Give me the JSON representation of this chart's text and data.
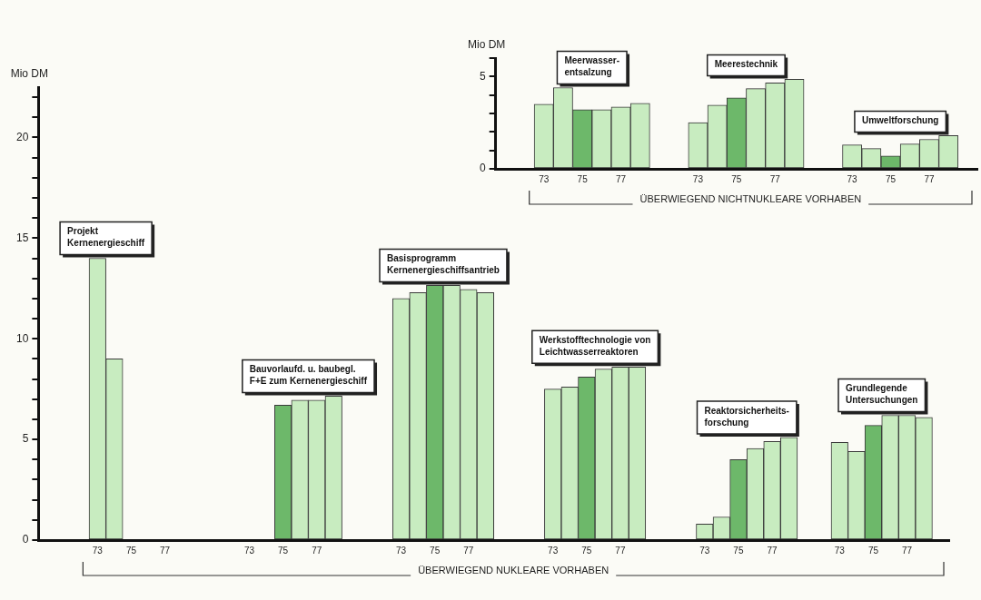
{
  "chart_data": [
    {
      "type": "bar",
      "ylabel": "Mio DM",
      "categories": [
        null,
        null,
        null,
        "73",
        null,
        "75",
        null,
        "77",
        null,
        null,
        null,
        null,
        "73",
        null,
        "75",
        null,
        "77",
        null,
        null,
        null,
        null,
        "73",
        null,
        "75",
        null,
        "77",
        null,
        null,
        null,
        null,
        "73",
        null,
        "75",
        null,
        "77",
        null,
        null,
        null,
        null,
        "73",
        null,
        "75",
        null,
        "77",
        null,
        null,
        null,
        "73",
        null,
        "75",
        null,
        "77",
        null,
        null
      ],
      "series": [
        {
          "name": "Projekt\nKernenergieschiff",
          "color": "#c8ecc0",
          "values": [
            null,
            null,
            null,
            14.0,
            9.0,
            null,
            null,
            null,
            null,
            null,
            null,
            null,
            null,
            null,
            null,
            null,
            null,
            null,
            null,
            null,
            null,
            null,
            null,
            null,
            null,
            null,
            null,
            null,
            null,
            null,
            null,
            null,
            null,
            null,
            null,
            null,
            null,
            null,
            null,
            null,
            null,
            null,
            null,
            null,
            null,
            null,
            null,
            null,
            null,
            null,
            null,
            null,
            null,
            null
          ]
        },
        {
          "name": "Bauvorlaufd. u. baubegl.\nF+E zum Kernenergieschiff",
          "color": "#c8ecc0",
          "colors": [
            null,
            null,
            null,
            null,
            null,
            null,
            null,
            null,
            null,
            null,
            null,
            null,
            null,
            null,
            "#6db86a",
            "#c8ecc0",
            "#c8ecc0",
            "#c8ecc0",
            null,
            null,
            null,
            null,
            null,
            null,
            null,
            null,
            null,
            null,
            null,
            null,
            null,
            null,
            null,
            null,
            null,
            null,
            null,
            null,
            null,
            null,
            null,
            null,
            null,
            null,
            null,
            null,
            null,
            null,
            null,
            null,
            null,
            null,
            null,
            null
          ],
          "values": [
            null,
            null,
            null,
            null,
            null,
            null,
            null,
            null,
            null,
            null,
            null,
            null,
            null,
            null,
            6.7,
            6.95,
            6.95,
            7.15,
            null,
            null,
            null,
            null,
            null,
            null,
            null,
            null,
            null,
            null,
            null,
            null,
            null,
            null,
            null,
            null,
            null,
            null,
            null,
            null,
            null,
            null,
            null,
            null,
            null,
            null,
            null,
            null,
            null,
            null,
            null,
            null,
            null,
            null,
            null,
            null
          ]
        },
        {
          "name": "Basisprogramm\nKernenergieschiffsantrieb",
          "color": "#c8ecc0",
          "colors": [
            null,
            null,
            null,
            null,
            null,
            null,
            null,
            null,
            null,
            null,
            null,
            null,
            null,
            null,
            null,
            null,
            null,
            null,
            null,
            null,
            null,
            "#c8ecc0",
            "#c8ecc0",
            "#6db86a",
            "#c8ecc0",
            "#c8ecc0",
            "#c8ecc0",
            null,
            null,
            null,
            null,
            null,
            null,
            null,
            null,
            null,
            null,
            null,
            null,
            null,
            null,
            null,
            null,
            null,
            null,
            null,
            null,
            null,
            null,
            null,
            null,
            null,
            null,
            null
          ],
          "values": [
            null,
            null,
            null,
            null,
            null,
            null,
            null,
            null,
            null,
            null,
            null,
            null,
            null,
            null,
            null,
            null,
            null,
            null,
            null,
            null,
            null,
            12.0,
            12.3,
            12.65,
            12.65,
            12.45,
            12.3,
            null,
            null,
            null,
            null,
            null,
            null,
            null,
            null,
            null,
            null,
            null,
            null,
            null,
            null,
            null,
            null,
            null,
            null,
            null,
            null,
            null,
            null,
            null,
            null,
            null,
            null,
            null
          ]
        },
        {
          "name": "Werkstofftechnologie von\nLeichtwasserreaktoren",
          "color": "#c8ecc0",
          "colors": [
            null,
            null,
            null,
            null,
            null,
            null,
            null,
            null,
            null,
            null,
            null,
            null,
            null,
            null,
            null,
            null,
            null,
            null,
            null,
            null,
            null,
            null,
            null,
            null,
            null,
            null,
            null,
            null,
            null,
            null,
            "#c8ecc0",
            "#c8ecc0",
            "#6db86a",
            "#c8ecc0",
            "#c8ecc0",
            "#c8ecc0",
            null,
            null,
            null,
            null,
            null,
            null,
            null,
            null,
            null,
            null,
            null,
            null,
            null,
            null,
            null,
            null,
            null,
            null
          ],
          "values": [
            null,
            null,
            null,
            null,
            null,
            null,
            null,
            null,
            null,
            null,
            null,
            null,
            null,
            null,
            null,
            null,
            null,
            null,
            null,
            null,
            null,
            null,
            null,
            null,
            null,
            null,
            null,
            null,
            null,
            null,
            7.5,
            7.6,
            8.1,
            8.5,
            8.6,
            8.6,
            null,
            null,
            null,
            null,
            null,
            null,
            null,
            null,
            null,
            null,
            null,
            null,
            null,
            null,
            null,
            null,
            null,
            null
          ]
        },
        {
          "name": "Reaktorsicherheits-\nforschung",
          "color": "#c8ecc0",
          "colors": [
            null,
            null,
            null,
            null,
            null,
            null,
            null,
            null,
            null,
            null,
            null,
            null,
            null,
            null,
            null,
            null,
            null,
            null,
            null,
            null,
            null,
            null,
            null,
            null,
            null,
            null,
            null,
            null,
            null,
            null,
            null,
            null,
            null,
            null,
            null,
            null,
            null,
            null,
            null,
            "#c8ecc0",
            "#c8ecc0",
            "#6db86a",
            "#c8ecc0",
            "#c8ecc0",
            "#c8ecc0",
            null,
            null,
            null,
            null,
            null,
            null,
            null,
            null,
            null
          ],
          "values": [
            null,
            null,
            null,
            null,
            null,
            null,
            null,
            null,
            null,
            null,
            null,
            null,
            null,
            null,
            null,
            null,
            null,
            null,
            null,
            null,
            null,
            null,
            null,
            null,
            null,
            null,
            null,
            null,
            null,
            null,
            null,
            null,
            null,
            null,
            null,
            null,
            null,
            null,
            null,
            0.8,
            1.15,
            4.0,
            4.55,
            4.9,
            5.1,
            null,
            null,
            null,
            null,
            null,
            null,
            null,
            null,
            null
          ]
        },
        {
          "name": "Grundlegende\nUntersuchungen",
          "color": "#c8ecc0",
          "colors": [
            null,
            null,
            null,
            null,
            null,
            null,
            null,
            null,
            null,
            null,
            null,
            null,
            null,
            null,
            null,
            null,
            null,
            null,
            null,
            null,
            null,
            null,
            null,
            null,
            null,
            null,
            null,
            null,
            null,
            null,
            null,
            null,
            null,
            null,
            null,
            null,
            null,
            null,
            null,
            null,
            null,
            null,
            null,
            null,
            null,
            null,
            null,
            "#c8ecc0",
            "#c8ecc0",
            "#6db86a",
            "#c8ecc0",
            "#c8ecc0",
            "#c8ecc0",
            null
          ],
          "values": [
            null,
            null,
            null,
            null,
            null,
            null,
            null,
            null,
            null,
            null,
            null,
            null,
            null,
            null,
            null,
            null,
            null,
            null,
            null,
            null,
            null,
            null,
            null,
            null,
            null,
            null,
            null,
            null,
            null,
            null,
            null,
            null,
            null,
            null,
            null,
            null,
            null,
            null,
            null,
            null,
            null,
            null,
            null,
            null,
            null,
            null,
            null,
            4.85,
            4.4,
            5.7,
            6.2,
            6.2,
            6.1,
            null
          ]
        }
      ],
      "ylim": [
        0,
        22.5
      ],
      "yticks": [
        0,
        {
          "value": 1,
          "label": null
        },
        {
          "value": 2,
          "label": null
        },
        {
          "value": 3,
          "label": null
        },
        {
          "value": 4,
          "label": null
        },
        5,
        {
          "value": 6,
          "label": null
        },
        {
          "value": 7,
          "label": null
        },
        {
          "value": 8,
          "label": null
        },
        {
          "value": 9,
          "label": null
        },
        10,
        {
          "value": 11,
          "label": null
        },
        {
          "value": 12,
          "label": null
        },
        {
          "value": 13,
          "label": null
        },
        {
          "value": 14,
          "label": null
        },
        15,
        {
          "value": 16,
          "label": null
        },
        {
          "value": 17,
          "label": null
        },
        {
          "value": 18,
          "label": null
        },
        {
          "value": 19,
          "label": null
        },
        20,
        {
          "value": 21,
          "label": null
        },
        {
          "value": 22,
          "label": null
        }
      ],
      "annotations": [
        "ÜBERWIEGEND NUKLEARE VORHABEN"
      ]
    },
    {
      "type": "bar",
      "ylabel": "Mio DM",
      "categories": [
        null,
        null,
        "73",
        null,
        "75",
        null,
        "77",
        null,
        null,
        null,
        "73",
        null,
        "75",
        null,
        "77",
        null,
        null,
        null,
        "73",
        null,
        "75",
        null,
        "77",
        null,
        null
      ],
      "series": [
        {
          "name": "Meerwasser-\nentsalzung",
          "color": "#c8ecc0",
          "colors": [
            null,
            null,
            "#c8ecc0",
            "#c8ecc0",
            "#6db86a",
            "#c8ecc0",
            "#c8ecc0",
            "#c8ecc0",
            null,
            null,
            null,
            null,
            null,
            null,
            null,
            null,
            null,
            null,
            null,
            null,
            null,
            null,
            null,
            null,
            null
          ],
          "values": [
            null,
            null,
            3.5,
            4.4,
            3.2,
            3.2,
            3.35,
            3.55,
            null,
            null,
            null,
            null,
            null,
            null,
            null,
            null,
            null,
            null,
            null,
            null,
            null,
            null,
            null,
            null,
            null
          ]
        },
        {
          "name": "Meerestechnik",
          "color": "#c8ecc0",
          "colors": [
            null,
            null,
            null,
            null,
            null,
            null,
            null,
            null,
            null,
            null,
            "#c8ecc0",
            "#c8ecc0",
            "#6db86a",
            "#c8ecc0",
            "#c8ecc0",
            "#c8ecc0",
            null,
            null,
            null,
            null,
            null,
            null,
            null,
            null,
            null
          ],
          "values": [
            null,
            null,
            null,
            null,
            null,
            null,
            null,
            null,
            null,
            null,
            2.5,
            3.45,
            3.85,
            4.35,
            4.65,
            4.85,
            null,
            null,
            null,
            null,
            null,
            null,
            null,
            null,
            null
          ]
        },
        {
          "name": "Umweltforschung",
          "color": "#c8ecc0",
          "colors": [
            null,
            null,
            null,
            null,
            null,
            null,
            null,
            null,
            null,
            null,
            null,
            null,
            null,
            null,
            null,
            null,
            null,
            null,
            "#c8ecc0",
            "#c8ecc0",
            "#6db86a",
            "#c8ecc0",
            "#c8ecc0",
            "#c8ecc0",
            null
          ],
          "values": [
            null,
            null,
            null,
            null,
            null,
            null,
            null,
            null,
            null,
            null,
            null,
            null,
            null,
            null,
            null,
            null,
            null,
            null,
            1.3,
            1.1,
            0.7,
            1.35,
            1.6,
            1.8,
            null
          ]
        }
      ],
      "ylim": [
        0,
        6
      ],
      "yticks": [
        0,
        {
          "value": 1,
          "label": null
        },
        {
          "value": 2,
          "label": null
        },
        {
          "value": 3,
          "label": null
        },
        {
          "value": 4,
          "label": null
        },
        5,
        {
          "value": 6,
          "label": null
        }
      ],
      "annotations": [
        "ÜBERWIEGEND NICHTNUKLEARE VORHABEN"
      ]
    }
  ]
}
